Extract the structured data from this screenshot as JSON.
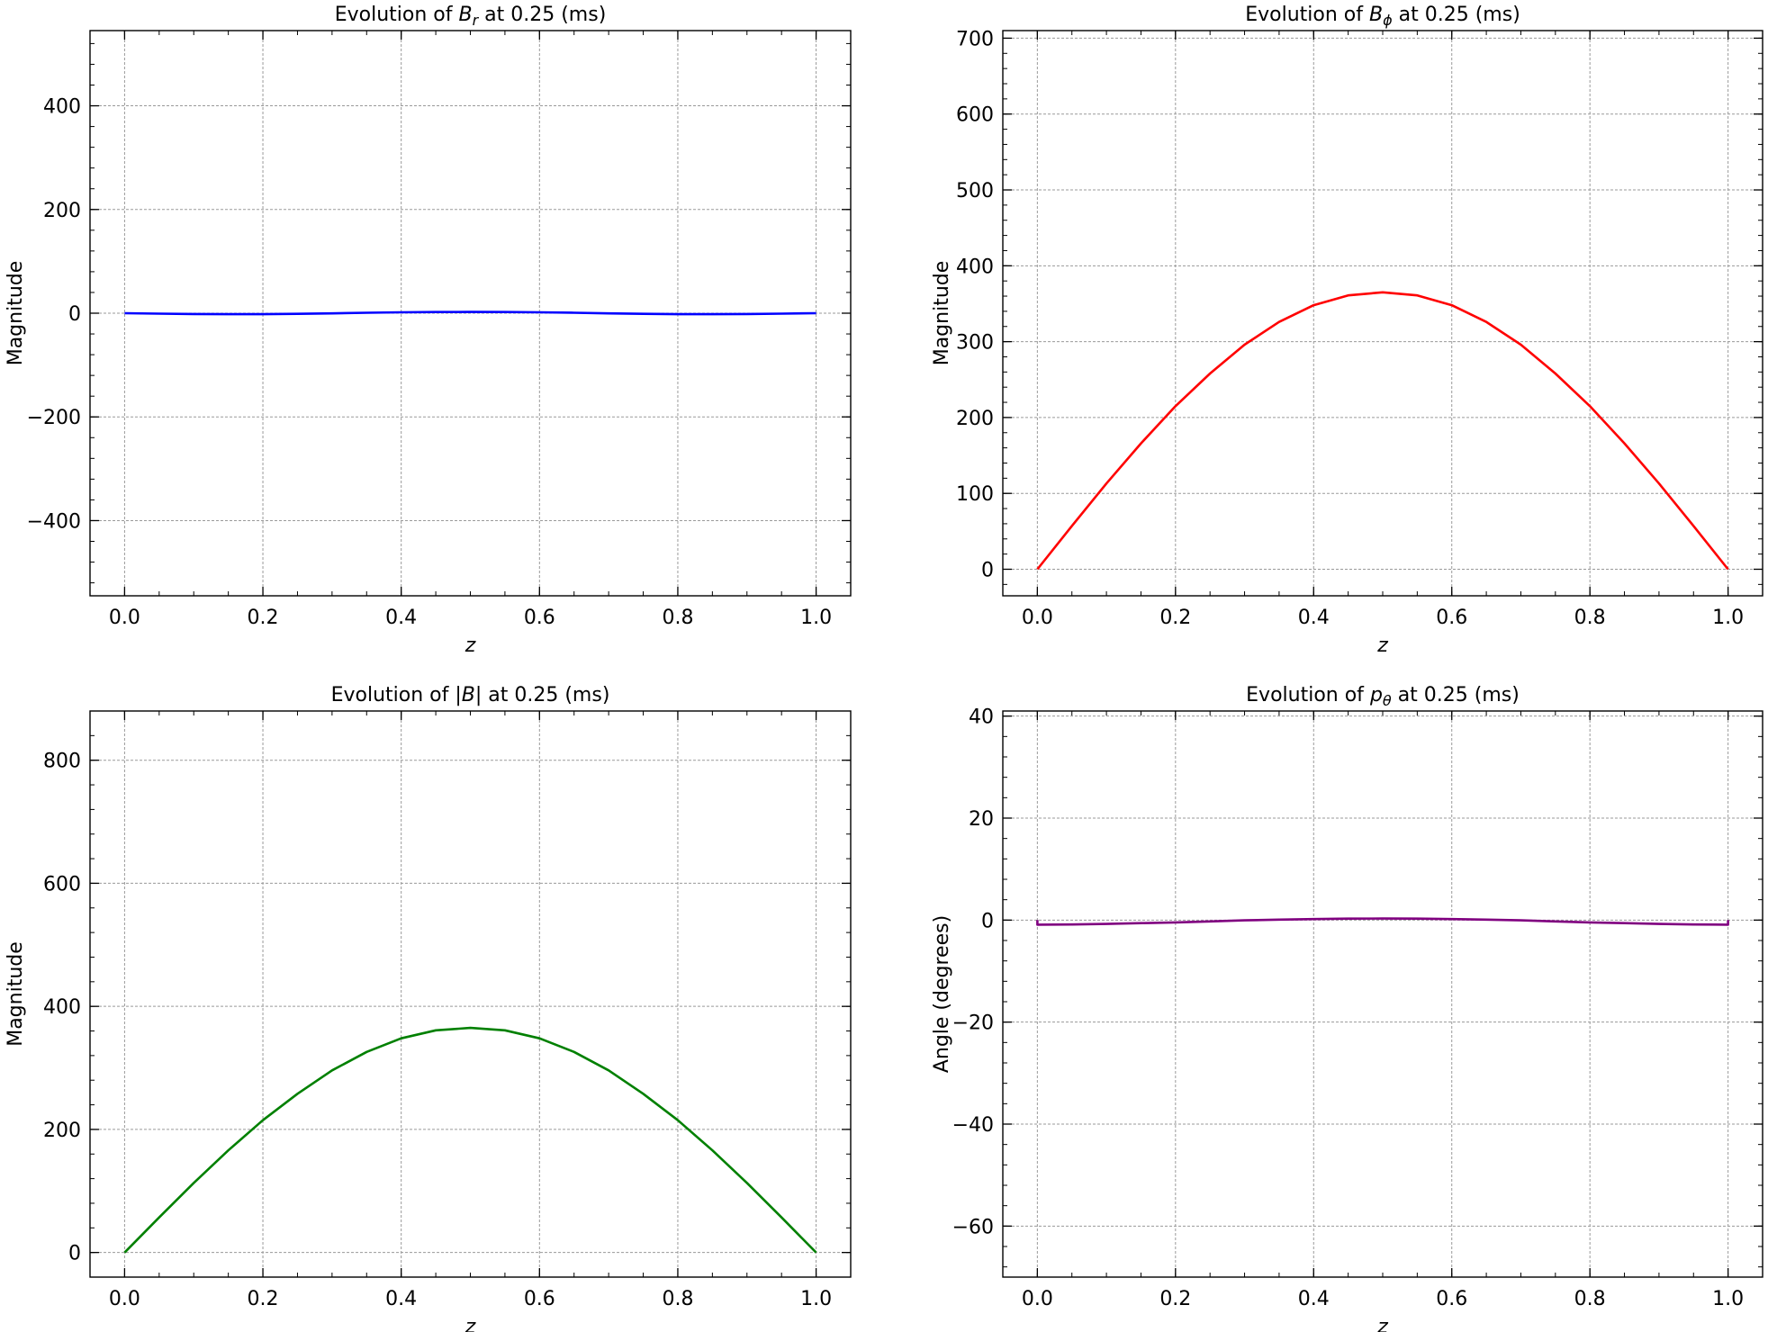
{
  "chart_data": [
    {
      "type": "line",
      "title": {
        "pre": "Evolution of ",
        "sym": "B",
        "sub": "r",
        "post": " at 0.25 (ms)"
      },
      "xlabel": "z",
      "ylabel": "Magnitude",
      "xlim": [
        -0.05,
        1.05
      ],
      "ylim": [
        -545,
        545
      ],
      "xticks": [
        0.0,
        0.2,
        0.4,
        0.6,
        0.8,
        1.0
      ],
      "xtick_labels": [
        "0.0",
        "0.2",
        "0.4",
        "0.6",
        "0.8",
        "1.0"
      ],
      "yticks": [
        -400,
        -200,
        0,
        200,
        400
      ],
      "ytick_labels": [
        "−400",
        "−200",
        "0",
        "200",
        "400"
      ],
      "grid": true,
      "series": [
        {
          "color": "#0000ff",
          "x": [
            0.0,
            0.05,
            0.1,
            0.15,
            0.2,
            0.25,
            0.3,
            0.35,
            0.4,
            0.45,
            0.5,
            0.55,
            0.6,
            0.65,
            0.7,
            0.75,
            0.8,
            0.85,
            0.9,
            0.95,
            1.0
          ],
          "y": [
            0,
            -0.8,
            -1.5,
            -1.9,
            -1.9,
            -1.3,
            -0.3,
            0.8,
            1.7,
            2.3,
            2.5,
            2.3,
            1.7,
            0.8,
            -0.3,
            -1.3,
            -1.9,
            -1.9,
            -1.5,
            -0.8,
            0
          ]
        }
      ]
    },
    {
      "type": "line",
      "title": {
        "pre": "Evolution of ",
        "sym": "B",
        "sub": "ϕ",
        "post": " at 0.25 (ms)"
      },
      "xlabel": "z",
      "ylabel": "Magnitude",
      "xlim": [
        -0.05,
        1.05
      ],
      "ylim": [
        -35,
        710
      ],
      "xticks": [
        0.0,
        0.2,
        0.4,
        0.6,
        0.8,
        1.0
      ],
      "xtick_labels": [
        "0.0",
        "0.2",
        "0.4",
        "0.6",
        "0.8",
        "1.0"
      ],
      "yticks": [
        0,
        100,
        200,
        300,
        400,
        500,
        600,
        700
      ],
      "ytick_labels": [
        "0",
        "100",
        "200",
        "300",
        "400",
        "500",
        "600",
        "700"
      ],
      "grid": true,
      "series": [
        {
          "color": "#ff0000",
          "x": [
            0.0,
            0.05,
            0.1,
            0.15,
            0.2,
            0.25,
            0.3,
            0.35,
            0.4,
            0.45,
            0.5,
            0.55,
            0.6,
            0.65,
            0.7,
            0.75,
            0.8,
            0.85,
            0.9,
            0.95,
            1.0
          ],
          "y": [
            0,
            57,
            113,
            166,
            215,
            258,
            296,
            326,
            348,
            361,
            365,
            361,
            348,
            326,
            296,
            258,
            215,
            166,
            113,
            57,
            0
          ]
        }
      ]
    },
    {
      "type": "line",
      "title": {
        "pre": "Evolution of |",
        "sym": "B",
        "sub": "",
        "post": "| at 0.25 (ms)"
      },
      "xlabel": "z",
      "ylabel": "Magnitude",
      "xlim": [
        -0.05,
        1.05
      ],
      "ylim": [
        -40,
        880
      ],
      "xticks": [
        0.0,
        0.2,
        0.4,
        0.6,
        0.8,
        1.0
      ],
      "xtick_labels": [
        "0.0",
        "0.2",
        "0.4",
        "0.6",
        "0.8",
        "1.0"
      ],
      "yticks": [
        0,
        200,
        400,
        600,
        800
      ],
      "ytick_labels": [
        "0",
        "200",
        "400",
        "600",
        "800"
      ],
      "grid": true,
      "series": [
        {
          "color": "#008000",
          "x": [
            0.0,
            0.05,
            0.1,
            0.15,
            0.2,
            0.25,
            0.3,
            0.35,
            0.4,
            0.45,
            0.5,
            0.55,
            0.6,
            0.65,
            0.7,
            0.75,
            0.8,
            0.85,
            0.9,
            0.95,
            1.0
          ],
          "y": [
            0,
            57,
            113,
            166,
            215,
            258,
            296,
            326,
            348,
            361,
            365,
            361,
            348,
            326,
            296,
            258,
            215,
            166,
            113,
            57,
            0
          ]
        }
      ]
    },
    {
      "type": "line",
      "title": {
        "pre": "Evolution of ",
        "sym": "p",
        "sub": "θ",
        "post": " at 0.25 (ms)"
      },
      "xlabel": "z",
      "ylabel": "Angle (degrees)",
      "xlim": [
        -0.05,
        1.05
      ],
      "ylim": [
        -70,
        41
      ],
      "xticks": [
        0.0,
        0.2,
        0.4,
        0.6,
        0.8,
        1.0
      ],
      "xtick_labels": [
        "0.0",
        "0.2",
        "0.4",
        "0.6",
        "0.8",
        "1.0"
      ],
      "yticks": [
        -60,
        -40,
        -20,
        0,
        20,
        40
      ],
      "ytick_labels": [
        "−60",
        "−40",
        "−20",
        "0",
        "20",
        "40"
      ],
      "grid": true,
      "series": [
        {
          "color": "#800080",
          "x": [
            0.0,
            0.0,
            0.05,
            0.1,
            0.15,
            0.2,
            0.25,
            0.3,
            0.35,
            0.4,
            0.45,
            0.5,
            0.55,
            0.6,
            0.65,
            0.7,
            0.75,
            0.8,
            0.85,
            0.9,
            0.95,
            1.0,
            1.0
          ],
          "y": [
            0,
            -0.9,
            -0.85,
            -0.75,
            -0.6,
            -0.45,
            -0.25,
            -0.05,
            0.1,
            0.2,
            0.28,
            0.3,
            0.28,
            0.2,
            0.1,
            -0.05,
            -0.25,
            -0.45,
            -0.6,
            -0.75,
            -0.85,
            -0.9,
            0
          ]
        }
      ]
    }
  ]
}
